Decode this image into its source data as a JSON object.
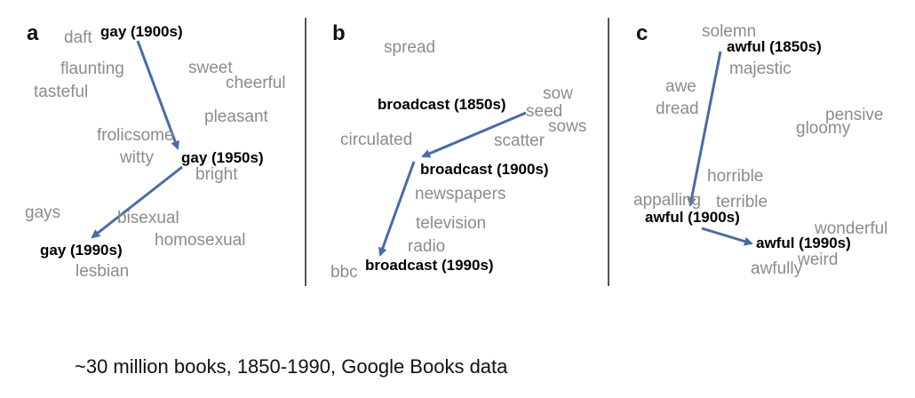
{
  "panels": [
    {
      "label": "a",
      "keys": [
        "gay (1900s)",
        "gay (1950s)",
        "gay (1990s)"
      ],
      "words": [
        "daft",
        "flaunting",
        "tasteful",
        "sweet",
        "cheerful",
        "pleasant",
        "frolicsome",
        "witty",
        "bright",
        "gays",
        "bisexual",
        "homosexual",
        "lesbian"
      ]
    },
    {
      "label": "b",
      "keys": [
        "broadcast (1850s)",
        "broadcast (1900s)",
        "broadcast (1990s)"
      ],
      "words": [
        "spread",
        "sow",
        "seed",
        "sows",
        "circulated",
        "scatter",
        "newspapers",
        "television",
        "radio",
        "bbc"
      ]
    },
    {
      "label": "c",
      "keys": [
        "awful (1850s)",
        "awful (1900s)",
        "awful (1990s)"
      ],
      "words": [
        "solemn",
        "majestic",
        "awe",
        "dread",
        "pensive",
        "gloomy",
        "horrible",
        "appalling",
        "terrible",
        "wonderful",
        "weird",
        "awfully"
      ]
    }
  ],
  "colors": {
    "arrow": "#4a6aa8",
    "neighbor": "#8c8c8c",
    "key": "#000000"
  },
  "caption": "~30 million books, 1850-1990, Google Books data"
}
